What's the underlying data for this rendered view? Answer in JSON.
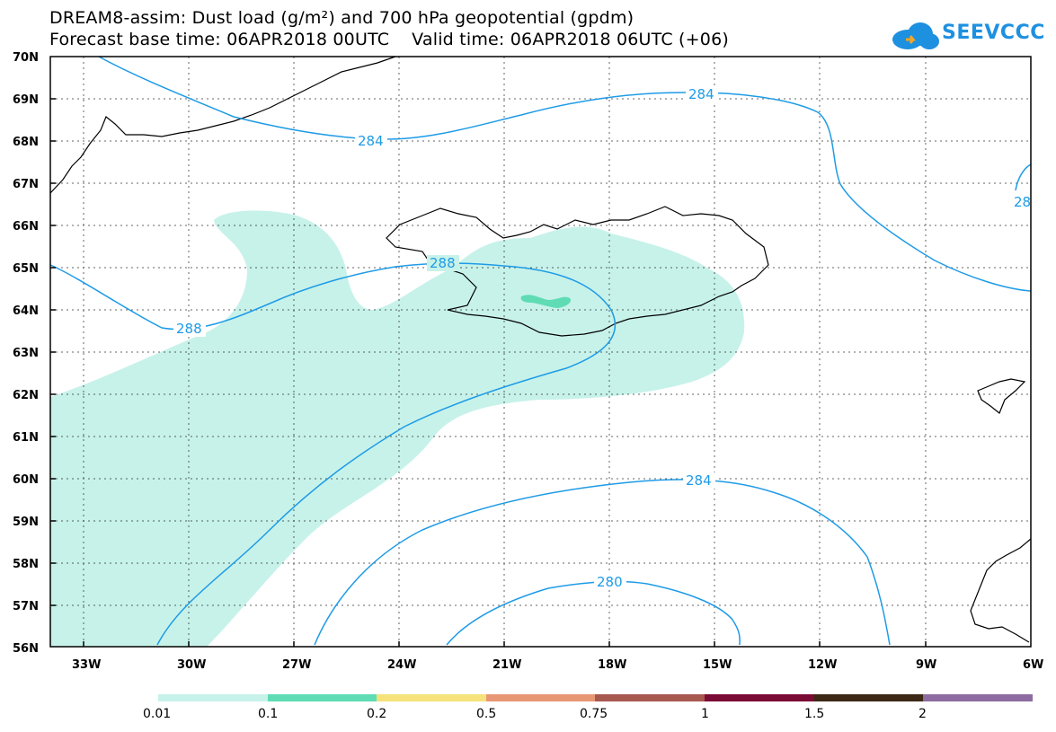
{
  "title": {
    "line1": "DREAM8-assim: Dust load (g/m²) and 700 hPa geopotential (gpdm)",
    "line2": "Forecast base time: 06APR2018 00UTC    Valid time: 06APR2018 06UTC (+06)"
  },
  "logo": {
    "text": "SEEVCCC",
    "icon": "cloud-icon"
  },
  "map": {
    "lat_labels": [
      "70N",
      "69N",
      "68N",
      "67N",
      "66N",
      "65N",
      "64N",
      "63N",
      "62N",
      "61N",
      "60N",
      "59N",
      "58N",
      "57N",
      "56N"
    ],
    "lon_labels": [
      "33W",
      "30W",
      "27W",
      "24W",
      "21W",
      "18W",
      "15W",
      "12W",
      "9W",
      "6W"
    ],
    "contour_labels": {
      "c284_north": "284",
      "c284_top": "284",
      "c284_edge": "28",
      "c288_west": "288",
      "c288_center": "288",
      "c284_south": "284",
      "c280": "280"
    },
    "colors": {
      "contour": "#1e9be6",
      "dust_low": "#c7f2ea",
      "dust_mid": "#5fdcb4",
      "coast": "#000000"
    }
  },
  "colorbar": {
    "labels": [
      "0.01",
      "0.1",
      "0.2",
      "0.5",
      "0.75",
      "1",
      "1.5",
      "2"
    ],
    "colors": [
      "#c7f2ea",
      "#5fdcb4",
      "#f5e27a",
      "#e89775",
      "#a7584f",
      "#7a0b35",
      "#3c2814",
      "#8e6ba0"
    ]
  }
}
